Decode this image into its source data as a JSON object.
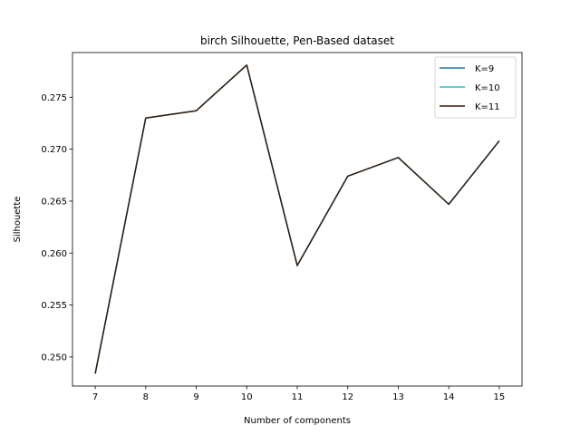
{
  "chart_data": {
    "type": "line",
    "title": "birch Silhouette, Pen-Based dataset",
    "xlabel": "Number of components",
    "ylabel": "Silhouette",
    "x": [
      7,
      8,
      9,
      10,
      11,
      12,
      13,
      14,
      15
    ],
    "xlim": [
      6.55,
      15.45
    ],
    "ylim": [
      0.2472,
      0.2793
    ],
    "xticks": [
      "7",
      "8",
      "9",
      "10",
      "11",
      "12",
      "13",
      "14",
      "15"
    ],
    "yticks": [
      0.25,
      0.255,
      0.26,
      0.265,
      0.27,
      0.275
    ],
    "ytick_labels": [
      "0.250",
      "0.255",
      "0.260",
      "0.265",
      "0.270",
      "0.275"
    ],
    "grid": false,
    "legend_position": "top-right",
    "series": [
      {
        "name": "K=9",
        "color": "#1f7a9e",
        "values": [
          0.2484,
          0.273,
          0.2737,
          0.2781,
          0.2588,
          0.2674,
          0.2692,
          0.2647,
          0.2708
        ]
      },
      {
        "name": "K=10",
        "color": "#2ec4b6",
        "values": [
          0.2484,
          0.273,
          0.2737,
          0.2781,
          0.2588,
          0.2674,
          0.2692,
          0.2647,
          0.2708
        ]
      },
      {
        "name": "K=11",
        "color": "#3b1a0e",
        "values": [
          0.2484,
          0.273,
          0.2737,
          0.2781,
          0.2588,
          0.2674,
          0.2692,
          0.2647,
          0.2708
        ]
      }
    ]
  }
}
